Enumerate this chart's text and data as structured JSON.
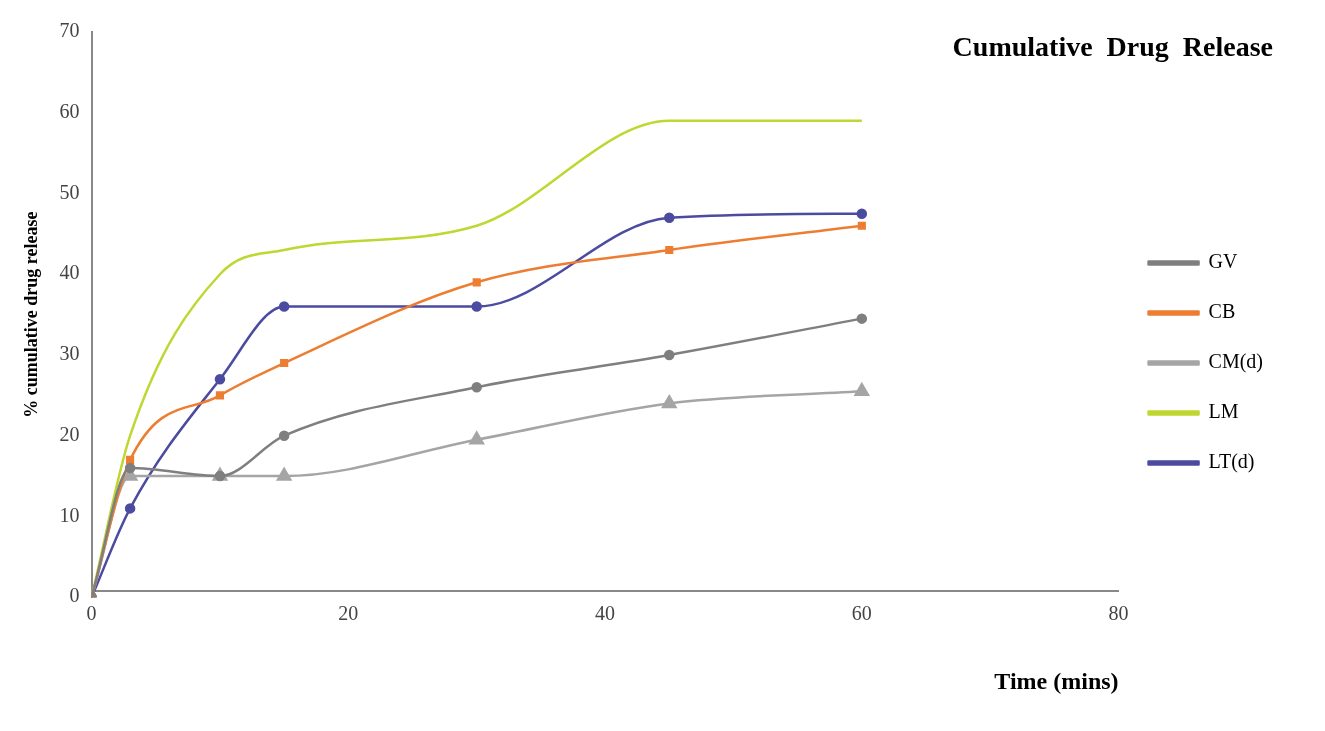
{
  "chart_data": {
    "type": "line",
    "title": "Cumulative  Drug  Release",
    "xlabel": "Time (mins)",
    "ylabel": "% cumulative drug release",
    "x": [
      0,
      3,
      10,
      15,
      30,
      45,
      60
    ],
    "xlim": [
      0,
      80
    ],
    "xticks": [
      0,
      20,
      40,
      60,
      80
    ],
    "ylim": [
      0,
      70
    ],
    "yticks": [
      0,
      10,
      20,
      30,
      40,
      50,
      60,
      70
    ],
    "grid": false,
    "legend": "right",
    "series": [
      {
        "name": "GV",
        "color": "#7f7f7f",
        "marker": "circle",
        "values": [
          0,
          16,
          15,
          20,
          26,
          30,
          34.5
        ]
      },
      {
        "name": "CB",
        "color": "#ed7d31",
        "marker": "square",
        "values": [
          0,
          17,
          25,
          29,
          39,
          43,
          46
        ]
      },
      {
        "name": "CM(d)",
        "color": "#a5a5a5",
        "marker": "triangle",
        "values": [
          0,
          15,
          15,
          15,
          19.5,
          24,
          25.5
        ]
      },
      {
        "name": "LM",
        "color": "#bfd730",
        "marker": "none",
        "values": [
          0,
          20,
          40,
          43,
          46,
          59,
          59
        ]
      },
      {
        "name": "LT(d)",
        "color": "#4b4ba0",
        "marker": "circle",
        "values": [
          0,
          11,
          27,
          36,
          36,
          47,
          47.5
        ]
      }
    ]
  }
}
